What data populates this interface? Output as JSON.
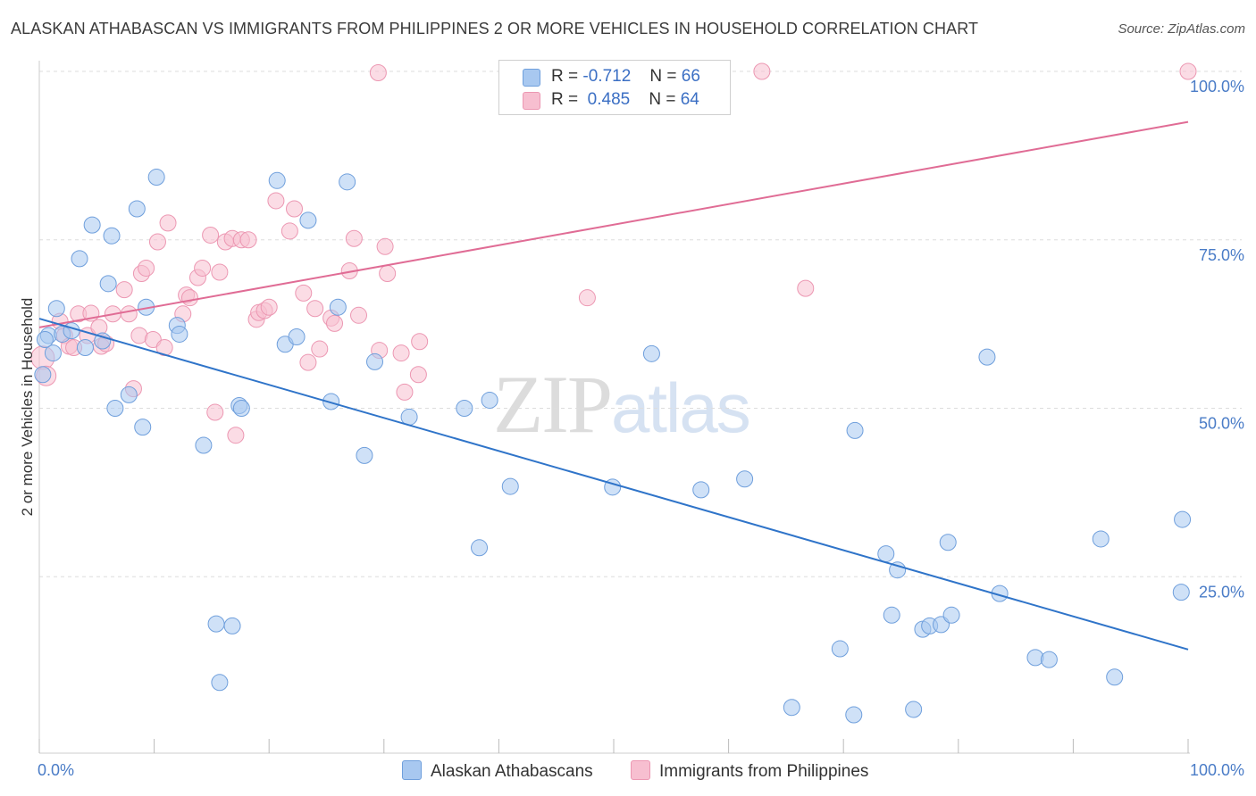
{
  "title": "ALASKAN ATHABASCAN VS IMMIGRANTS FROM PHILIPPINES 2 OR MORE VEHICLES IN HOUSEHOLD CORRELATION CHART",
  "source": "Source: ZipAtlas.com",
  "watermark": {
    "part1": "ZIP",
    "part2": "atlas"
  },
  "legend_stats": [
    {
      "r_label": "R =",
      "r_value": "-0.712",
      "n_label": "N =",
      "n_value": "66"
    },
    {
      "r_label": "R =",
      "r_value": "0.485",
      "n_label": "N =",
      "n_value": "64"
    }
  ],
  "bottom_legend": [
    "Alaskan Athabascans",
    "Immigrants from Philippines"
  ],
  "colors": {
    "blue_fill": "#a8c8f0",
    "blue_stroke": "#6f9fdc",
    "blue_line": "#2f74c9",
    "pink_fill": "#f7bfd0",
    "pink_stroke": "#ec97b2",
    "pink_line": "#e06c95",
    "tick_text": "#4a7cc7"
  },
  "chart_data": {
    "type": "scatter",
    "title": "ALASKAN ATHABASCAN VS IMMIGRANTS FROM PHILIPPINES 2 OR MORE VEHICLES IN HOUSEHOLD CORRELATION CHART",
    "xlabel": "",
    "ylabel": "2 or more Vehicles in Household",
    "xlim": [
      0,
      100
    ],
    "ylim": [
      0,
      100
    ],
    "x_tick_labels": [
      "0.0%",
      "100.0%"
    ],
    "y_tick_labels": [
      "25.0%",
      "50.0%",
      "75.0%",
      "100.0%"
    ],
    "y_ticks": [
      25,
      50,
      75,
      100
    ],
    "grid": "horizontal dashed",
    "legend_placement": "top-center",
    "series": [
      {
        "name": "Alaskan Athabascans",
        "r": -0.712,
        "n": 66,
        "trend": {
          "x": [
            0,
            100
          ],
          "y": [
            63.3,
            14.2
          ]
        },
        "points": [
          [
            0.3,
            55.0
          ],
          [
            0.8,
            60.8
          ],
          [
            1.2,
            58.2
          ],
          [
            1.5,
            64.8
          ],
          [
            2.0,
            61.0
          ],
          [
            2.8,
            61.5
          ],
          [
            4.0,
            59.0
          ],
          [
            3.5,
            72.2
          ],
          [
            4.6,
            77.2
          ],
          [
            5.5,
            60.0
          ],
          [
            6.0,
            68.5
          ],
          [
            6.3,
            75.6
          ],
          [
            6.6,
            50.0
          ],
          [
            7.8,
            52.0
          ],
          [
            8.5,
            79.6
          ],
          [
            9.0,
            47.2
          ],
          [
            9.3,
            65.0
          ],
          [
            10.2,
            84.3
          ],
          [
            12.0,
            62.3
          ],
          [
            12.2,
            61.0
          ],
          [
            14.3,
            44.5
          ],
          [
            15.4,
            18.0
          ],
          [
            15.7,
            9.3
          ],
          [
            16.8,
            17.7
          ],
          [
            17.4,
            50.4
          ],
          [
            17.6,
            50.0
          ],
          [
            20.7,
            83.8
          ],
          [
            21.4,
            59.5
          ],
          [
            22.4,
            60.6
          ],
          [
            23.4,
            77.9
          ],
          [
            25.4,
            51.0
          ],
          [
            26.0,
            65.0
          ],
          [
            26.8,
            83.6
          ],
          [
            28.3,
            43.0
          ],
          [
            29.2,
            56.9
          ],
          [
            32.2,
            48.7
          ],
          [
            37.0,
            50.0
          ],
          [
            38.3,
            29.3
          ],
          [
            39.2,
            51.2
          ],
          [
            41.0,
            38.4
          ],
          [
            49.9,
            38.3
          ],
          [
            53.3,
            58.1
          ],
          [
            57.6,
            37.9
          ],
          [
            61.4,
            39.5
          ],
          [
            65.5,
            5.6
          ],
          [
            69.7,
            14.3
          ],
          [
            71.0,
            46.7
          ],
          [
            70.9,
            4.5
          ],
          [
            73.7,
            28.4
          ],
          [
            74.7,
            26.0
          ],
          [
            74.2,
            19.3
          ],
          [
            76.1,
            5.3
          ],
          [
            76.9,
            17.2
          ],
          [
            77.5,
            17.7
          ],
          [
            78.5,
            17.9
          ],
          [
            79.1,
            30.1
          ],
          [
            79.4,
            19.3
          ],
          [
            82.5,
            57.6
          ],
          [
            83.6,
            22.5
          ],
          [
            86.7,
            13.0
          ],
          [
            87.9,
            12.7
          ],
          [
            92.4,
            30.6
          ],
          [
            93.6,
            10.1
          ],
          [
            99.4,
            22.7
          ],
          [
            99.5,
            33.5
          ],
          [
            0.5,
            60.2
          ]
        ]
      },
      {
        "name": "Immigrants from Philippines",
        "r": 0.485,
        "n": 64,
        "trend": {
          "x": [
            0,
            100
          ],
          "y": [
            62.0,
            92.5
          ]
        },
        "points": [
          [
            0.3,
            57.5
          ],
          [
            0.6,
            54.8
          ],
          [
            1.8,
            62.9
          ],
          [
            2.2,
            60.8
          ],
          [
            2.6,
            59.2
          ],
          [
            3.0,
            59.0
          ],
          [
            3.4,
            64.0
          ],
          [
            4.2,
            60.8
          ],
          [
            4.5,
            64.1
          ],
          [
            5.2,
            62.0
          ],
          [
            5.4,
            59.2
          ],
          [
            5.8,
            59.6
          ],
          [
            6.4,
            64.0
          ],
          [
            7.4,
            67.6
          ],
          [
            7.8,
            64.0
          ],
          [
            8.2,
            52.9
          ],
          [
            8.7,
            60.8
          ],
          [
            8.9,
            70.0
          ],
          [
            9.3,
            70.8
          ],
          [
            9.9,
            60.2
          ],
          [
            10.3,
            74.7
          ],
          [
            10.9,
            59.0
          ],
          [
            11.2,
            77.5
          ],
          [
            12.5,
            64.0
          ],
          [
            12.8,
            66.8
          ],
          [
            13.1,
            66.4
          ],
          [
            13.8,
            69.4
          ],
          [
            14.2,
            70.8
          ],
          [
            14.9,
            75.7
          ],
          [
            15.3,
            49.4
          ],
          [
            15.7,
            70.2
          ],
          [
            16.2,
            74.7
          ],
          [
            16.8,
            75.2
          ],
          [
            17.1,
            46.0
          ],
          [
            17.6,
            75.0
          ],
          [
            18.2,
            75.0
          ],
          [
            18.9,
            63.2
          ],
          [
            19.1,
            64.2
          ],
          [
            19.6,
            64.5
          ],
          [
            20.0,
            65.0
          ],
          [
            20.6,
            80.8
          ],
          [
            21.8,
            76.3
          ],
          [
            22.2,
            79.6
          ],
          [
            23.0,
            67.1
          ],
          [
            23.4,
            56.8
          ],
          [
            24.0,
            64.8
          ],
          [
            24.4,
            58.8
          ],
          [
            25.4,
            63.4
          ],
          [
            25.7,
            62.6
          ],
          [
            27.0,
            70.4
          ],
          [
            27.4,
            75.2
          ],
          [
            27.8,
            63.8
          ],
          [
            29.6,
            58.6
          ],
          [
            29.5,
            99.8
          ],
          [
            30.1,
            74.0
          ],
          [
            30.3,
            70.0
          ],
          [
            31.5,
            58.2
          ],
          [
            31.8,
            52.4
          ],
          [
            33.0,
            55.0
          ],
          [
            33.1,
            59.9
          ],
          [
            47.7,
            66.4
          ],
          [
            62.9,
            100.0
          ],
          [
            66.7,
            67.8
          ],
          [
            100.0,
            100.0
          ]
        ]
      }
    ]
  }
}
